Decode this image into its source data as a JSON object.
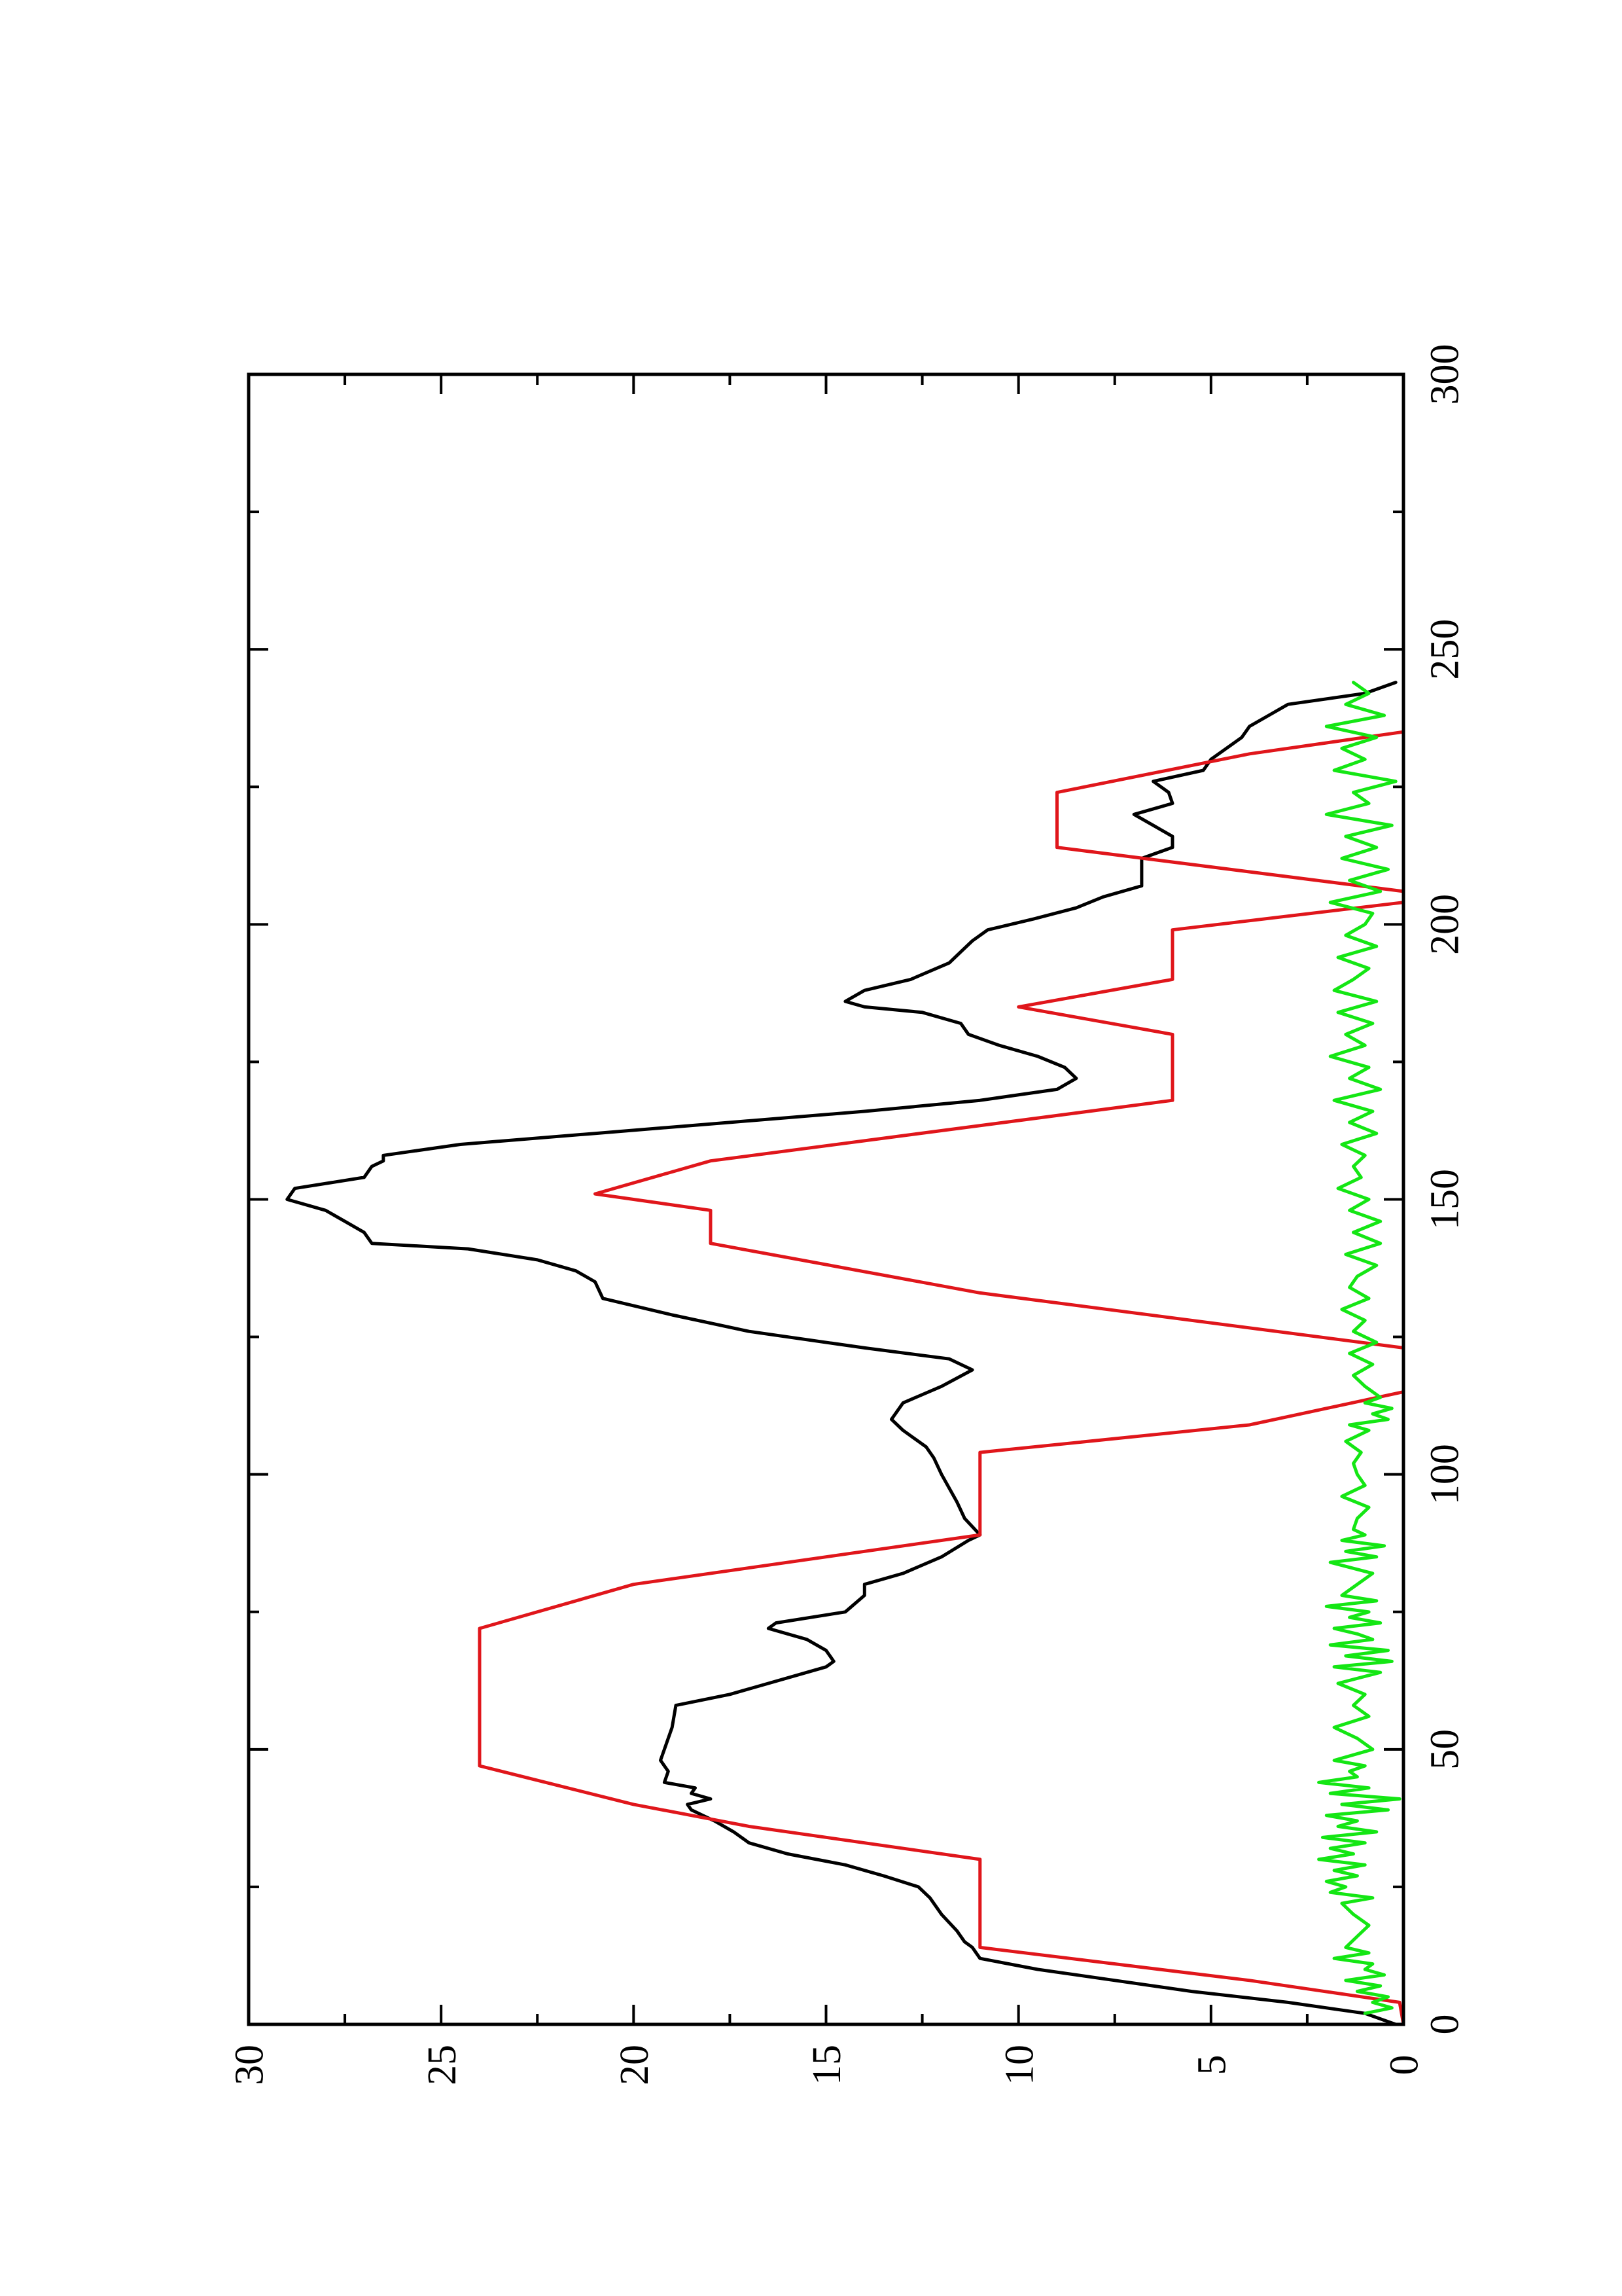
{
  "chart_data": {
    "type": "line",
    "orientation": "rotated-90-ccw",
    "title": "",
    "xlabel": "",
    "ylabel": "",
    "xlim": [
      0,
      300
    ],
    "ylim": [
      0,
      30
    ],
    "x_ticks": [
      0,
      50,
      100,
      150,
      200,
      250,
      300
    ],
    "x_minor_ticks": [
      25,
      75,
      125,
      175,
      225,
      275
    ],
    "y_ticks": [
      0,
      5,
      10,
      15,
      20,
      25,
      30
    ],
    "y_minor_ticks": [
      2.5,
      7.5,
      12.5,
      17.5,
      22.5,
      27.5
    ],
    "grid": false,
    "legend": "none",
    "series": [
      {
        "color": "#000000",
        "x": [
          0,
          2,
          4,
          6,
          8,
          10,
          12,
          14,
          15,
          17,
          20,
          23,
          25,
          27,
          29,
          31,
          33,
          35,
          37,
          38,
          39,
          40,
          41,
          42,
          43,
          44,
          46,
          48,
          50,
          54,
          58,
          60,
          62,
          65,
          66,
          68,
          70,
          72,
          73,
          75,
          78,
          80,
          82,
          85,
          88,
          89,
          92,
          95,
          100,
          103,
          105,
          108,
          110,
          111,
          113,
          116,
          119,
          120,
          121,
          123,
          126,
          129,
          132,
          135,
          137,
          139,
          141,
          142,
          144,
          146,
          148,
          150,
          152,
          154,
          156,
          157,
          158,
          160,
          162,
          164,
          166,
          168,
          170,
          172,
          174,
          176,
          178,
          180,
          182,
          184,
          185,
          186,
          188,
          190,
          193,
          195,
          197,
          199,
          201,
          203,
          205,
          207,
          210,
          212,
          214,
          216,
          218,
          220,
          222,
          224,
          226,
          228,
          230,
          232,
          234,
          236,
          238,
          240,
          242,
          244
        ],
        "y": [
          0.2,
          1.0,
          3.0,
          5.5,
          7.5,
          9.5,
          11.0,
          11.2,
          11.4,
          11.6,
          12.0,
          12.3,
          12.6,
          13.5,
          14.5,
          16.0,
          17.0,
          17.4,
          17.9,
          18.2,
          18.5,
          18.6,
          18.0,
          18.5,
          18.4,
          19.2,
          19.1,
          19.3,
          19.2,
          19.0,
          18.9,
          17.5,
          16.5,
          15.0,
          14.8,
          15.0,
          15.5,
          16.5,
          16.3,
          14.5,
          14.0,
          14.0,
          13.0,
          12.0,
          11.3,
          11.0,
          11.4,
          11.6,
          12.0,
          12.2,
          12.4,
          13.0,
          13.3,
          13.2,
          13.0,
          12.0,
          11.2,
          11.5,
          11.8,
          14.0,
          17.0,
          19.0,
          20.8,
          21.0,
          21.5,
          22.5,
          24.3,
          26.8,
          27.0,
          27.5,
          28.0,
          29.0,
          28.8,
          27.0,
          26.8,
          26.5,
          26.5,
          24.5,
          21.0,
          17.5,
          14.0,
          11.0,
          9.0,
          8.5,
          8.8,
          9.5,
          10.5,
          11.3,
          11.5,
          12.5,
          14.0,
          14.5,
          14.0,
          12.8,
          11.8,
          11.5,
          11.2,
          10.8,
          9.6,
          8.5,
          7.8,
          6.8,
          6.8,
          6.8,
          6.0,
          6.0,
          6.5,
          7.0,
          6.0,
          6.1,
          6.5,
          5.2,
          5.0,
          4.6,
          4.2,
          4.0,
          3.5,
          3.0,
          1.0,
          0.2
        ]
      },
      {
        "color": "#e0161b",
        "x": [
          0,
          4,
          8,
          14,
          30,
          36,
          40,
          47,
          72,
          80,
          89,
          104,
          109,
          115,
          123,
          133,
          142,
          148,
          151,
          157,
          168,
          180,
          185,
          190,
          199,
          204,
          206,
          214,
          224,
          231,
          235
        ],
        "y": [
          0,
          0.1,
          4.0,
          11.0,
          11.0,
          17.0,
          20.0,
          24.0,
          24.0,
          20.0,
          11.0,
          11.0,
          4.0,
          0,
          0,
          11.0,
          18.0,
          18.0,
          21.0,
          18.0,
          6.0,
          6.0,
          10.0,
          6.0,
          6.0,
          0,
          0,
          9.0,
          9.0,
          4.0,
          0
        ]
      },
      {
        "color": "#14e614",
        "x": [
          2,
          3,
          4,
          5,
          6,
          7,
          8,
          9,
          10,
          11,
          12,
          13,
          14,
          16,
          18,
          20,
          22,
          23,
          24,
          25,
          26,
          27,
          28,
          29,
          30,
          31,
          32,
          33,
          34,
          35,
          36,
          37,
          38,
          39,
          40,
          41,
          42,
          43,
          44,
          45,
          46,
          47,
          48,
          50,
          52,
          54,
          56,
          58,
          60,
          62,
          64,
          65,
          66,
          67,
          68,
          69,
          70,
          71,
          72,
          73,
          74,
          75,
          76,
          77,
          78,
          80,
          82,
          84,
          85,
          86,
          87,
          88,
          89,
          90,
          92,
          94,
          96,
          98,
          100,
          102,
          104,
          106,
          108,
          109,
          110,
          111,
          112,
          113,
          114,
          116,
          118,
          120,
          122,
          124,
          126,
          128,
          130,
          132,
          134,
          136,
          138,
          140,
          142,
          144,
          146,
          148,
          150,
          152,
          154,
          156,
          158,
          160,
          162,
          164,
          166,
          168,
          170,
          172,
          174,
          176,
          178,
          180,
          182,
          184,
          186,
          188,
          190,
          192,
          194,
          196,
          198,
          200,
          202,
          204,
          206,
          208,
          210,
          212,
          214,
          216,
          218,
          220,
          222,
          224,
          226,
          228,
          230,
          232,
          234,
          236,
          238,
          240,
          242,
          244
        ],
        "y": [
          1.0,
          0.3,
          0.8,
          0.4,
          1.2,
          0.6,
          1.5,
          0.5,
          1.0,
          0.8,
          1.8,
          0.9,
          1.5,
          1.2,
          0.9,
          1.3,
          1.6,
          0.8,
          1.9,
          1.5,
          2.0,
          1.2,
          1.8,
          1.0,
          2.2,
          1.3,
          1.9,
          1.0,
          2.1,
          0.7,
          1.7,
          1.2,
          2.0,
          0.4,
          1.6,
          0.1,
          1.9,
          0.9,
          2.2,
          1.2,
          1.4,
          1.0,
          1.8,
          0.8,
          1.2,
          1.8,
          0.9,
          1.3,
          1.0,
          1.7,
          0.6,
          1.8,
          0.3,
          1.5,
          0.4,
          1.9,
          0.8,
          1.2,
          1.8,
          0.6,
          1.4,
          0.9,
          2.0,
          0.7,
          1.6,
          1.2,
          0.8,
          1.9,
          0.7,
          1.5,
          0.5,
          1.6,
          1.0,
          1.3,
          1.2,
          0.9,
          1.6,
          1.0,
          1.2,
          1.3,
          1.1,
          1.5,
          0.9,
          1.4,
          0.4,
          0.8,
          0.3,
          1.0,
          0.6,
          1.0,
          1.3,
          0.8,
          1.4,
          0.7,
          1.3,
          1.0,
          1.6,
          0.9,
          1.4,
          1.2,
          0.7,
          1.5,
          0.6,
          1.3,
          0.6,
          1.4,
          0.9,
          1.7,
          1.1,
          1.3,
          1.0,
          1.6,
          0.7,
          1.4,
          0.8,
          1.8,
          0.6,
          1.4,
          0.9,
          1.9,
          1.0,
          1.5,
          0.8,
          1.7,
          0.7,
          1.8,
          1.3,
          0.9,
          1.7,
          0.7,
          1.5,
          1.0,
          0.8,
          1.9,
          0.6,
          1.4,
          0.4,
          1.6,
          0.7,
          1.5,
          0.3,
          2.0,
          0.9,
          1.3,
          0.2,
          1.8,
          1.0,
          1.6,
          0.7,
          2.0,
          0.5,
          1.5,
          0.9,
          1.3
        ]
      }
    ]
  }
}
